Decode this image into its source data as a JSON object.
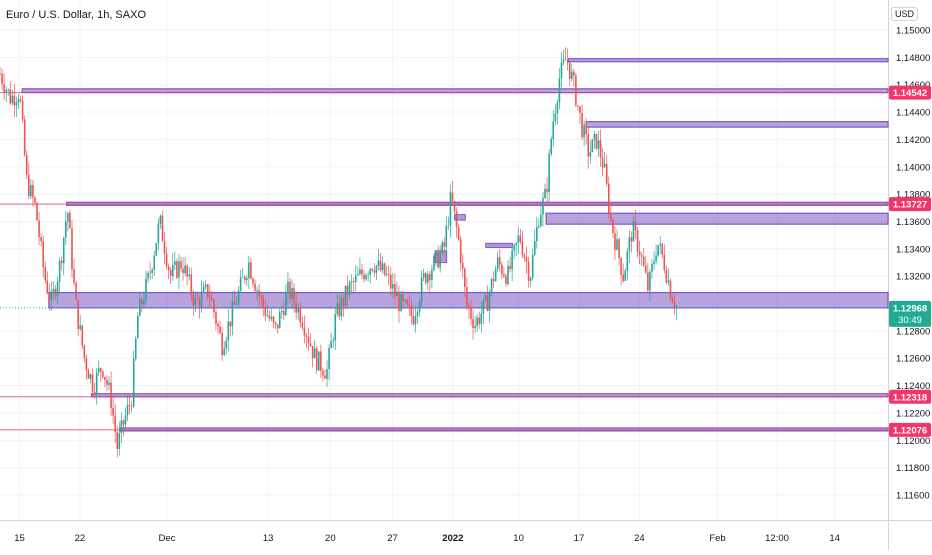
{
  "chart_data": {
    "type": "candlestick",
    "title": "Euro / U.S. Dollar, 1h, SAXO",
    "currency": "USD",
    "ylim": [
      1.1155,
      1.1515
    ],
    "y_ticks": [
      "1.15000",
      "1.14800",
      "1.14600",
      "1.14400",
      "1.14200",
      "1.14000",
      "1.13800",
      "1.13600",
      "1.13400",
      "1.13200",
      "1.12800",
      "1.12600",
      "1.12400",
      "1.12200",
      "1.12000",
      "1.11800",
      "1.11600"
    ],
    "x_ticks": [
      "15",
      "22",
      "Dec",
      "13",
      "20",
      "27",
      "2022",
      "10",
      "17",
      "24",
      "Feb",
      "12:00",
      "14"
    ],
    "price_badges": [
      {
        "label": "1.14542",
        "value": 1.14542,
        "color": "#f23667"
      },
      {
        "label": "1.13727",
        "value": 1.13727,
        "color": "#f23667"
      },
      {
        "label": "1.12968",
        "value": 1.12968,
        "color": "#22ab94",
        "sub": "30:49"
      },
      {
        "label": "1.12318",
        "value": 1.12318,
        "color": "#f23667"
      },
      {
        "label": "1.12076",
        "value": 1.12076,
        "color": "#f23667"
      }
    ],
    "zones": [
      {
        "t_start": 0.64,
        "top": 1.1479,
        "bottom": 1.1477
      },
      {
        "t_start": 0.025,
        "top": 1.1457,
        "bottom": 1.14542
      },
      {
        "t_start": 0.66,
        "top": 1.1433,
        "bottom": 1.1429
      },
      {
        "t_start": 0.075,
        "top": 1.1374,
        "bottom": 1.1372
      },
      {
        "t_start": 0.615,
        "top": 1.1366,
        "bottom": 1.1358
      },
      {
        "t_start": 0.055,
        "top": 1.1308,
        "bottom": 1.12968
      },
      {
        "t_start": 0.103,
        "top": 1.1234,
        "bottom": 1.12318
      },
      {
        "t_start": 0.135,
        "top": 1.1209,
        "bottom": 1.12076
      }
    ],
    "mini_zones": [
      {
        "t_start": 0.512,
        "t_end": 0.524,
        "top": 1.1365,
        "bottom": 1.1361
      },
      {
        "t_start": 0.49,
        "t_end": 0.503,
        "top": 1.13385,
        "bottom": 1.133
      },
      {
        "t_start": 0.547,
        "t_end": 0.577,
        "top": 1.1344,
        "bottom": 1.1341
      }
    ],
    "price_path": [
      {
        "t": 0.0,
        "v": 1.1468
      },
      {
        "t": 0.012,
        "v": 1.145
      },
      {
        "t": 0.022,
        "v": 1.1455
      },
      {
        "t": 0.03,
        "v": 1.139
      },
      {
        "t": 0.04,
        "v": 1.137
      },
      {
        "t": 0.05,
        "v": 1.132
      },
      {
        "t": 0.058,
        "v": 1.13
      },
      {
        "t": 0.068,
        "v": 1.133
      },
      {
        "t": 0.076,
        "v": 1.137
      },
      {
        "t": 0.085,
        "v": 1.13
      },
      {
        "t": 0.095,
        "v": 1.126
      },
      {
        "t": 0.105,
        "v": 1.124
      },
      {
        "t": 0.115,
        "v": 1.1255
      },
      {
        "t": 0.125,
        "v": 1.123
      },
      {
        "t": 0.132,
        "v": 1.1195
      },
      {
        "t": 0.14,
        "v": 1.1215
      },
      {
        "t": 0.148,
        "v": 1.123
      },
      {
        "t": 0.155,
        "v": 1.129
      },
      {
        "t": 0.168,
        "v": 1.132
      },
      {
        "t": 0.18,
        "v": 1.136
      },
      {
        "t": 0.192,
        "v": 1.132
      },
      {
        "t": 0.205,
        "v": 1.133
      },
      {
        "t": 0.22,
        "v": 1.13
      },
      {
        "t": 0.235,
        "v": 1.131
      },
      {
        "t": 0.25,
        "v": 1.127
      },
      {
        "t": 0.265,
        "v": 1.13
      },
      {
        "t": 0.28,
        "v": 1.133
      },
      {
        "t": 0.295,
        "v": 1.13
      },
      {
        "t": 0.31,
        "v": 1.128
      },
      {
        "t": 0.325,
        "v": 1.131
      },
      {
        "t": 0.34,
        "v": 1.129
      },
      {
        "t": 0.355,
        "v": 1.126
      },
      {
        "t": 0.368,
        "v": 1.125
      },
      {
        "t": 0.378,
        "v": 1.129
      },
      {
        "t": 0.392,
        "v": 1.131
      },
      {
        "t": 0.405,
        "v": 1.132
      },
      {
        "t": 0.42,
        "v": 1.133
      },
      {
        "t": 0.435,
        "v": 1.132
      },
      {
        "t": 0.45,
        "v": 1.13
      },
      {
        "t": 0.465,
        "v": 1.129
      },
      {
        "t": 0.478,
        "v": 1.132
      },
      {
        "t": 0.49,
        "v": 1.133
      },
      {
        "t": 0.5,
        "v": 1.134
      },
      {
        "t": 0.508,
        "v": 1.1378
      },
      {
        "t": 0.518,
        "v": 1.134
      },
      {
        "t": 0.525,
        "v": 1.13
      },
      {
        "t": 0.535,
        "v": 1.1285
      },
      {
        "t": 0.548,
        "v": 1.13
      },
      {
        "t": 0.56,
        "v": 1.133
      },
      {
        "t": 0.572,
        "v": 1.132
      },
      {
        "t": 0.585,
        "v": 1.135
      },
      {
        "t": 0.597,
        "v": 1.132
      },
      {
        "t": 0.607,
        "v": 1.1365
      },
      {
        "t": 0.615,
        "v": 1.138
      },
      {
        "t": 0.622,
        "v": 1.143
      },
      {
        "t": 0.63,
        "v": 1.1465
      },
      {
        "t": 0.638,
        "v": 1.148
      },
      {
        "t": 0.646,
        "v": 1.146
      },
      {
        "t": 0.655,
        "v": 1.143
      },
      {
        "t": 0.663,
        "v": 1.141
      },
      {
        "t": 0.672,
        "v": 1.142
      },
      {
        "t": 0.68,
        "v": 1.14
      },
      {
        "t": 0.688,
        "v": 1.136
      },
      {
        "t": 0.695,
        "v": 1.134
      },
      {
        "t": 0.702,
        "v": 1.132
      },
      {
        "t": 0.712,
        "v": 1.1355
      },
      {
        "t": 0.72,
        "v": 1.134
      },
      {
        "t": 0.73,
        "v": 1.131
      },
      {
        "t": 0.74,
        "v": 1.1345
      },
      {
        "t": 0.748,
        "v": 1.133
      },
      {
        "t": 0.755,
        "v": 1.131
      },
      {
        "t": 0.762,
        "v": 1.1297
      }
    ]
  }
}
